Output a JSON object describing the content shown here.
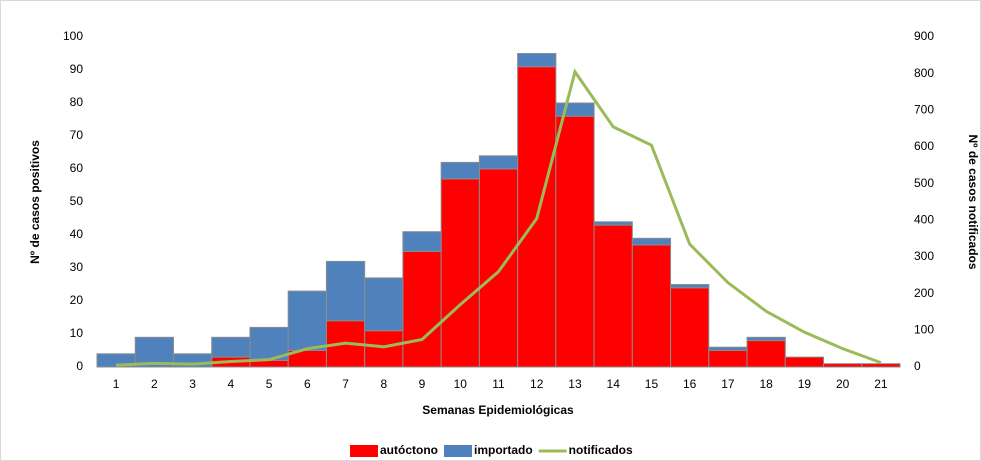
{
  "chart_data": {
    "type": "stacked_bar_line",
    "x_label": "Semanas Epidemiológicas",
    "y_label": "Nº de casos positivos",
    "y2_label": "Nº de casos notificados",
    "categories": [
      "1",
      "2",
      "3",
      "4",
      "5",
      "6",
      "7",
      "8",
      "9",
      "10",
      "11",
      "12",
      "13",
      "14",
      "15",
      "16",
      "17",
      "18",
      "19",
      "20",
      "21"
    ],
    "series": [
      {
        "name": "autóctono",
        "color": "#ff0000",
        "kind": "bar",
        "values": [
          0,
          0,
          0,
          3,
          2,
          5,
          14,
          11,
          35,
          57,
          60,
          91,
          76,
          43,
          37,
          24,
          5,
          8,
          3,
          1,
          1
        ]
      },
      {
        "name": "importado",
        "color": "#4f81bd",
        "kind": "bar",
        "values": [
          4,
          9,
          4,
          6,
          10,
          18,
          18,
          16,
          6,
          5,
          4,
          4,
          4,
          1,
          2,
          1,
          1,
          1,
          0,
          0,
          0
        ]
      },
      {
        "name": "notificados",
        "color": "#9bbb59",
        "kind": "line",
        "axis": "y2",
        "values": [
          5,
          10,
          8,
          15,
          20,
          50,
          65,
          55,
          75,
          170,
          260,
          405,
          805,
          655,
          605,
          335,
          230,
          152,
          95,
          50,
          12
        ]
      }
    ],
    "ylim": [
      0,
      100
    ],
    "yticks": [
      0,
      10,
      20,
      30,
      40,
      50,
      60,
      70,
      80,
      90,
      100
    ],
    "y2lim": [
      0,
      900
    ],
    "y2ticks": [
      0,
      100,
      200,
      300,
      400,
      500,
      600,
      700,
      800,
      900
    ]
  }
}
